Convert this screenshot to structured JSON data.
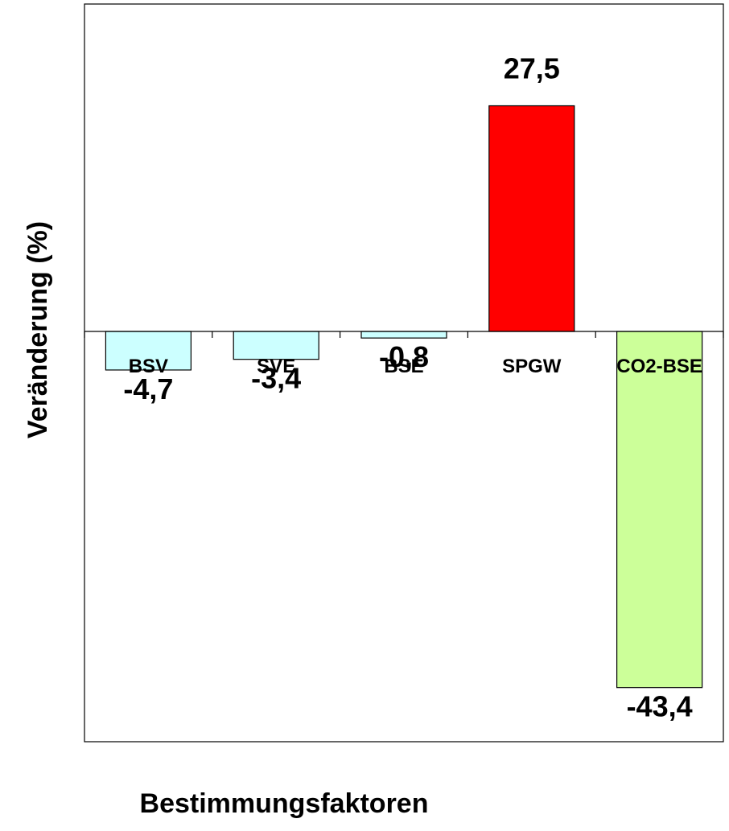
{
  "chart_data": {
    "type": "bar",
    "title": "",
    "xlabel": "Bestimmungsfaktoren",
    "ylabel": "Veränderung (%)",
    "categories": [
      "BSV",
      "SVE",
      "BSE",
      "SPGW",
      "CO2-BSE"
    ],
    "values": [
      -4.7,
      -3.4,
      -0.8,
      27.5,
      -43.4
    ],
    "value_labels": [
      "-4,7",
      "-3,4",
      "-0,8",
      "27,5",
      "-43,4"
    ],
    "ylim": [
      -50,
      40
    ],
    "grid": false,
    "legend": "none",
    "colors": [
      "#ccffff",
      "#ccffff",
      "#ccffff",
      "#ff0000",
      "#ccff99"
    ]
  }
}
